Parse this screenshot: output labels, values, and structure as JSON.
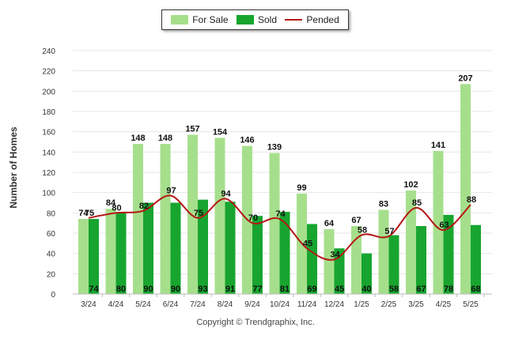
{
  "legend": {
    "for_sale": "For Sale",
    "sold": "Sold",
    "pended": "Pended"
  },
  "copyright": "Copyright © Trendgraphix, Inc.",
  "colors": {
    "for_sale": "#a6df8c",
    "sold": "#17a52f",
    "pended": "#b51616"
  },
  "chart_data": {
    "type": "bar",
    "categories": [
      "3/24",
      "4/24",
      "5/24",
      "6/24",
      "7/24",
      "8/24",
      "9/24",
      "10/24",
      "11/24",
      "12/24",
      "1/25",
      "2/25",
      "3/25",
      "4/25",
      "5/25"
    ],
    "series": [
      {
        "name": "For Sale",
        "type": "bar",
        "values": [
          74,
          84,
          148,
          148,
          157,
          154,
          146,
          139,
          99,
          64,
          67,
          83,
          102,
          141,
          207
        ]
      },
      {
        "name": "Sold",
        "type": "bar",
        "values": [
          74,
          80,
          90,
          90,
          93,
          91,
          77,
          81,
          69,
          45,
          40,
          58,
          67,
          78,
          68
        ]
      },
      {
        "name": "Pended",
        "type": "line",
        "values": [
          75,
          80,
          82,
          97,
          75,
          94,
          70,
          74,
          45,
          34,
          58,
          57,
          85,
          63,
          88
        ]
      }
    ],
    "ylabel": "Number of Homes",
    "ylim": [
      0,
      240
    ],
    "yticks": [
      0,
      20,
      40,
      60,
      80,
      100,
      120,
      140,
      160,
      180,
      200,
      220,
      240
    ],
    "grid": true,
    "legend_position": "top-center"
  }
}
